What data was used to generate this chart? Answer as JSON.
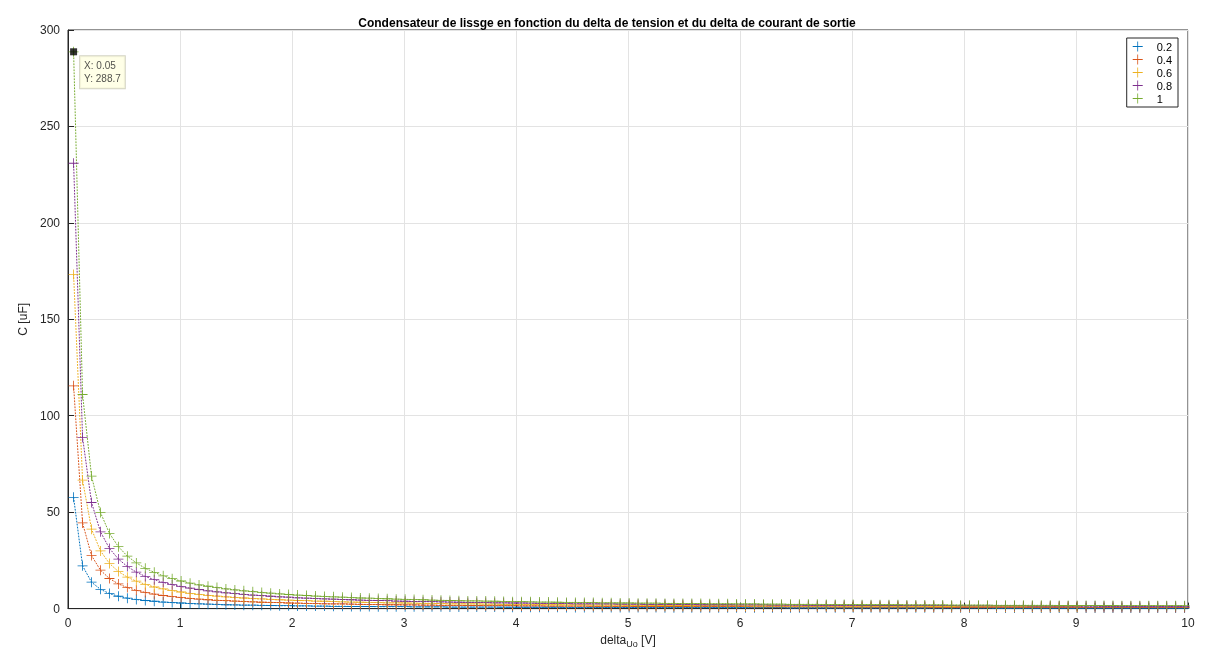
{
  "chart_data": {
    "type": "line",
    "title": "Condensateur de lissge en fonction du delta de tension et du delta de courant de sortie",
    "xlabel": "delta$_{Uo}$ [V]",
    "ylabel": "C [uF]",
    "xlim": [
      0,
      10
    ],
    "xticks": [
      0,
      1,
      2,
      3,
      4,
      5,
      6,
      7,
      8,
      9,
      10
    ],
    "ylim": [
      0,
      300
    ],
    "yticks": [
      0,
      50,
      100,
      150,
      200,
      250,
      300
    ],
    "grid": true,
    "legend": "top right",
    "marker": "cross",
    "line_style": "dotted",
    "annotations": [
      {
        "text": "X: 0.05\nY: 288.7",
        "x": 0.05,
        "y": 288.7
      }
    ],
    "x": [
      0.05,
      0.13,
      0.21,
      0.29,
      0.37,
      0.45,
      0.53,
      0.61,
      0.69,
      0.77,
      0.85,
      0.93,
      1.01,
      1.09,
      1.17,
      1.25,
      1.33,
      1.41,
      1.49,
      1.57,
      1.65,
      1.73,
      1.81,
      1.89,
      1.97,
      2.05,
      2.13,
      2.21,
      2.29,
      2.37,
      2.45,
      2.53,
      2.61,
      2.69,
      2.77,
      2.85,
      2.93,
      3.01,
      3.09,
      3.17,
      3.25,
      3.33,
      3.41,
      3.49,
      3.57,
      3.65,
      3.73,
      3.81,
      3.89,
      3.97,
      4.05,
      4.13,
      4.21,
      4.29,
      4.37,
      4.45,
      4.53,
      4.61,
      4.69,
      4.77,
      4.85,
      4.93,
      5.01,
      5.09,
      5.17,
      5.25,
      5.33,
      5.41,
      5.49,
      5.57,
      5.65,
      5.73,
      5.81,
      5.89,
      5.97,
      6.05,
      6.13,
      6.21,
      6.29,
      6.37,
      6.45,
      6.53,
      6.61,
      6.69,
      6.77,
      6.85,
      6.93,
      7.01,
      7.09,
      7.17,
      7.25,
      7.33,
      7.41,
      7.49,
      7.57,
      7.65,
      7.73,
      7.81,
      7.89,
      7.97,
      8.05,
      8.13,
      8.21,
      8.29,
      8.37,
      8.45,
      8.53,
      8.61,
      8.69,
      8.77,
      8.85,
      8.93,
      9.01,
      9.09,
      9.17,
      9.25,
      9.33,
      9.41,
      9.49,
      9.57,
      9.65,
      9.73,
      9.81,
      9.89,
      9.97
    ],
    "series": [
      {
        "name": "0.2",
        "color": "#0072bd",
        "values": [
          57.7,
          22.2,
          13.7,
          10.0,
          7.8,
          6.4,
          5.4,
          4.7,
          4.2,
          3.8,
          3.4,
          3.1,
          2.9,
          2.6,
          2.5,
          2.3,
          2.2,
          2.0,
          1.9,
          1.8,
          1.8,
          1.7,
          1.6,
          1.5,
          1.5,
          1.4,
          1.4,
          1.3,
          1.3,
          1.2,
          1.2,
          1.1,
          1.1,
          1.1,
          1.0,
          1.0,
          1.0,
          1.0,
          0.9,
          0.9,
          0.9,
          0.9,
          0.8,
          0.8,
          0.8,
          0.8,
          0.8,
          0.8,
          0.7,
          0.7,
          0.7,
          0.7,
          0.7,
          0.7,
          0.7,
          0.6,
          0.6,
          0.6,
          0.6,
          0.6,
          0.6,
          0.6,
          0.6,
          0.6,
          0.6,
          0.6,
          0.5,
          0.5,
          0.5,
          0.5,
          0.5,
          0.5,
          0.5,
          0.5,
          0.5,
          0.5,
          0.5,
          0.5,
          0.5,
          0.5,
          0.4,
          0.4,
          0.4,
          0.4,
          0.4,
          0.4,
          0.4,
          0.4,
          0.4,
          0.4,
          0.4,
          0.4,
          0.4,
          0.4,
          0.4,
          0.4,
          0.4,
          0.4,
          0.4,
          0.4,
          0.4,
          0.4,
          0.4,
          0.3,
          0.3,
          0.3,
          0.3,
          0.3,
          0.3,
          0.3,
          0.3,
          0.3,
          0.3,
          0.3,
          0.3,
          0.3,
          0.3,
          0.3,
          0.3,
          0.3,
          0.3,
          0.3,
          0.3,
          0.3,
          0.3
        ]
      },
      {
        "name": "0.4",
        "color": "#d95319",
        "values": [
          115.5,
          44.4,
          27.5,
          19.9,
          15.6,
          12.8,
          10.9,
          9.5,
          8.4,
          7.5,
          6.8,
          6.2,
          5.7,
          5.3,
          4.9,
          4.6,
          4.3,
          4.1,
          3.9,
          3.7,
          3.5,
          3.3,
          3.2,
          3.1,
          2.9,
          2.8,
          2.7,
          2.6,
          2.5,
          2.4,
          2.4,
          2.3,
          2.2,
          2.1,
          2.1,
          2.0,
          2.0,
          1.9,
          1.9,
          1.8,
          1.8,
          1.7,
          1.7,
          1.7,
          1.6,
          1.6,
          1.5,
          1.5,
          1.5,
          1.5,
          1.4,
          1.4,
          1.4,
          1.3,
          1.3,
          1.3,
          1.3,
          1.3,
          1.2,
          1.2,
          1.2,
          1.2,
          1.2,
          1.1,
          1.1,
          1.1,
          1.1,
          1.1,
          1.1,
          1.0,
          1.0,
          1.0,
          1.0,
          1.0,
          1.0,
          1.0,
          0.9,
          0.9,
          0.9,
          0.9,
          0.9,
          0.9,
          0.9,
          0.9,
          0.9,
          0.8,
          0.8,
          0.8,
          0.8,
          0.8,
          0.8,
          0.8,
          0.8,
          0.8,
          0.8,
          0.8,
          0.7,
          0.7,
          0.7,
          0.7,
          0.7,
          0.7,
          0.7,
          0.7,
          0.7,
          0.7,
          0.7,
          0.7,
          0.7,
          0.7,
          0.7,
          0.6,
          0.6,
          0.6,
          0.6,
          0.6,
          0.6,
          0.6,
          0.6,
          0.6,
          0.6,
          0.6,
          0.6,
          0.6,
          0.6
        ]
      },
      {
        "name": "0.6",
        "color": "#edb120",
        "values": [
          173.2,
          66.6,
          41.2,
          29.9,
          23.4,
          19.2,
          16.3,
          14.2,
          12.6,
          11.2,
          10.2,
          9.3,
          8.6,
          7.9,
          7.4,
          6.9,
          6.5,
          6.1,
          5.8,
          5.5,
          5.2,
          5.0,
          4.8,
          4.6,
          4.4,
          4.2,
          4.1,
          3.9,
          3.8,
          3.7,
          3.5,
          3.4,
          3.3,
          3.2,
          3.1,
          3.0,
          3.0,
          2.9,
          2.8,
          2.7,
          2.7,
          2.6,
          2.5,
          2.5,
          2.4,
          2.4,
          2.3,
          2.3,
          2.2,
          2.2,
          2.1,
          2.1,
          2.1,
          2.0,
          2.0,
          1.9,
          1.9,
          1.9,
          1.8,
          1.8,
          1.8,
          1.8,
          1.7,
          1.7,
          1.7,
          1.6,
          1.6,
          1.6,
          1.6,
          1.6,
          1.5,
          1.5,
          1.5,
          1.5,
          1.5,
          1.4,
          1.4,
          1.4,
          1.4,
          1.4,
          1.3,
          1.3,
          1.3,
          1.3,
          1.3,
          1.3,
          1.2,
          1.2,
          1.2,
          1.2,
          1.2,
          1.2,
          1.2,
          1.2,
          1.1,
          1.1,
          1.1,
          1.1,
          1.1,
          1.1,
          1.1,
          1.1,
          1.1,
          1.0,
          1.0,
          1.0,
          1.0,
          1.0,
          1.0,
          1.0,
          1.0,
          1.0,
          1.0,
          null,
          null,
          null,
          null,
          null,
          null,
          null,
          null,
          null,
          null,
          null,
          null
        ]
      },
      {
        "name": "0.8",
        "color": "#7e2f8e",
        "values": [
          230.9,
          88.8,
          55.0,
          39.8,
          31.2,
          25.7,
          21.8,
          18.9,
          16.7,
          15.0,
          13.6,
          12.4,
          11.4,
          10.6,
          9.9,
          9.2,
          8.7,
          8.2,
          7.8,
          7.4,
          7.0,
          6.7,
          6.4,
          6.1,
          5.9,
          5.6,
          5.4,
          5.2,
          5.0,
          4.9,
          4.7,
          4.6,
          4.4,
          4.3,
          4.2,
          4.1,
          3.9,
          3.8,
          3.7,
          3.6,
          3.6,
          3.5,
          3.4,
          3.3,
          3.2,
          3.2,
          3.1,
          3.0,
          3.0,
          2.9,
          2.9,
          2.8,
          2.7,
          2.7,
          2.6,
          2.6,
          2.5,
          2.5,
          2.5,
          2.4,
          2.4,
          2.3,
          2.3,
          2.3,
          2.2,
          2.2,
          2.2,
          2.1,
          2.1,
          2.1,
          2.0,
          2.0,
          2.0,
          2.0,
          1.9,
          1.9,
          1.9,
          1.9,
          1.8,
          1.8,
          1.8,
          1.8,
          1.7,
          1.7,
          1.7,
          1.7,
          1.7,
          1.7,
          1.6,
          1.6,
          1.6,
          1.6,
          1.6,
          1.5,
          1.5,
          1.5,
          1.5,
          1.5,
          1.5,
          1.4,
          1.4,
          1.4,
          1.4,
          1.4,
          1.4,
          1.4,
          1.4,
          1.3,
          1.3,
          1.3,
          1.3,
          1.3,
          1.3,
          1.3,
          1.3,
          1.2,
          1.2,
          1.2,
          1.2,
          1.2,
          1.2,
          1.2,
          1.2,
          1.2,
          1.2
        ]
      },
      {
        "name": "1",
        "color": "#77ac30",
        "values": [
          288.7,
          111.0,
          68.7,
          49.8,
          39.0,
          32.1,
          27.2,
          23.7,
          20.9,
          18.8,
          17.0,
          15.5,
          14.3,
          13.2,
          12.3,
          11.6,
          10.9,
          10.2,
          9.7,
          9.2,
          8.8,
          8.3,
          8.0,
          7.6,
          7.3,
          7.0,
          6.8,
          6.5,
          6.3,
          6.1,
          5.9,
          5.7,
          5.5,
          5.4,
          5.2,
          5.1,
          4.9,
          4.8,
          4.7,
          4.6,
          4.4,
          4.3,
          4.2,
          4.1,
          4.0,
          4.0,
          3.9,
          3.8,
          3.7,
          3.6,
          3.6,
          3.5,
          3.4,
          3.4,
          3.3,
          3.2,
          3.2,
          3.1,
          3.1,
          3.0,
          3.0,
          2.9,
          2.9,
          2.8,
          2.8,
          2.8,
          2.7,
          2.7,
          2.6,
          2.6,
          2.6,
          2.5,
          2.5,
          2.5,
          2.4,
          2.4,
          2.4,
          2.3,
          2.3,
          2.3,
          2.2,
          2.2,
          2.2,
          2.2,
          2.1,
          2.1,
          2.1,
          2.1,
          2.0,
          2.0,
          2.0,
          2.0,
          2.0,
          1.9,
          1.9,
          1.9,
          1.9,
          1.9,
          1.8,
          1.8,
          1.8,
          1.8,
          1.8,
          1.7,
          1.7,
          1.7,
          1.7,
          1.7,
          1.7,
          1.7,
          1.6,
          1.6,
          1.6,
          1.6,
          1.6,
          1.6,
          1.6,
          1.5,
          1.5,
          1.5,
          1.5,
          1.5,
          1.5,
          1.5,
          1.5
        ]
      }
    ]
  }
}
